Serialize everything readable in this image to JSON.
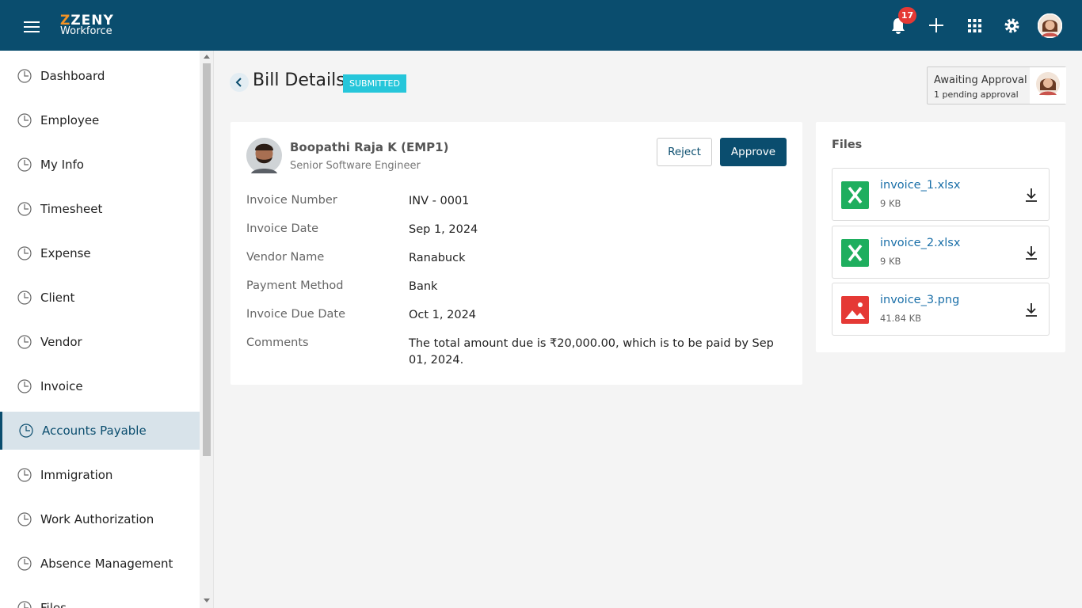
{
  "header": {
    "logo": "ZENY",
    "logo_sub": "Workforce",
    "notifications": "17"
  },
  "sidebar": {
    "items": [
      "Dashboard",
      "Employee",
      "My Info",
      "Timesheet",
      "Expense",
      "Client",
      "Vendor",
      "Invoice",
      "Accounts Payable",
      "Immigration",
      "Work Authorization",
      "Absence Management",
      "Files"
    ],
    "active": 8
  },
  "page": {
    "title": "Bill Details",
    "status": "SUBMITTED"
  },
  "approval": {
    "title": "Awaiting Approval",
    "subtitle": "1 pending approval"
  },
  "card": {
    "name": "Boopathi Raja K (EMP1)",
    "role": "Senior Software Engineer",
    "reject": "Reject",
    "approve": "Approve",
    "fields": [
      [
        "Invoice Number",
        "INV - 0001"
      ],
      [
        "Invoice Date",
        "Sep 1, 2024"
      ],
      [
        "Vendor Name",
        "Ranabuck"
      ],
      [
        "Payment Method",
        "Bank"
      ],
      [
        "Invoice Due Date",
        "Oct 1, 2024"
      ],
      [
        "Comments",
        "The total amount due is ₹20,000.00, which is to be paid by Sep 01, 2024."
      ]
    ]
  },
  "files": {
    "title": "Files",
    "items": [
      {
        "name": "invoice_1.xlsx",
        "size": "9 KB",
        "kind": "excel"
      },
      {
        "name": "invoice_2.xlsx",
        "size": "9 KB",
        "kind": "excel"
      },
      {
        "name": "invoice_3.png",
        "size": "41.84 KB",
        "kind": "image"
      }
    ]
  }
}
